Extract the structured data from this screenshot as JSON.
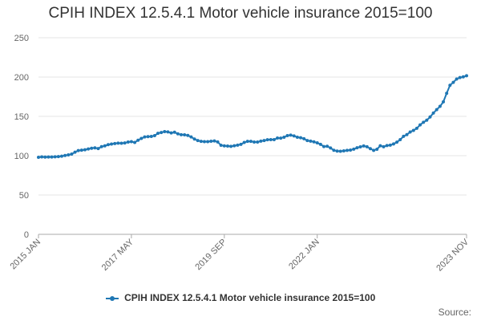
{
  "chart_data": {
    "type": "line",
    "title": "CPIH INDEX 12.5.4.1 Motor vehicle insurance 2015=100",
    "xlabel": "",
    "ylabel": "",
    "ylim": [
      0,
      250
    ],
    "yticks": [
      0,
      50,
      100,
      150,
      200,
      250
    ],
    "xtick_labels": [
      "2015 JAN",
      "2017 MAY",
      "2019 SEP",
      "2022 JAN",
      "2023 NOV"
    ],
    "x_start": "2015 JAN",
    "x_end": "2023 NOV",
    "grid": true,
    "legend": "bottom",
    "series": [
      {
        "name": "CPIH INDEX 12.5.4.1 Motor vehicle insurance 2015=100",
        "color": "#1f77b4",
        "values": [
          98,
          98.5,
          98.2,
          98.4,
          98.3,
          98.6,
          98.9,
          99.4,
          100.2,
          101,
          102,
          104.5,
          106.5,
          107,
          107.5,
          108.5,
          109.5,
          110,
          109,
          111.5,
          112.5,
          114,
          114.8,
          115.4,
          116,
          115.8,
          116.2,
          117.4,
          117.8,
          116.9,
          119.6,
          122,
          123.8,
          124.2,
          124.5,
          125.5,
          128.5,
          129.5,
          130.6,
          130.2,
          128.9,
          129.8,
          127.8,
          126.6,
          126.5,
          125.8,
          123.9,
          121.2,
          119.2,
          118.2,
          117.8,
          117.9,
          118.4,
          118.8,
          117.5,
          113.2,
          112.5,
          112.2,
          111.9,
          112.6,
          113.4,
          114.4,
          116.8,
          118.3,
          118.3,
          117.4,
          117.3,
          118.5,
          119.2,
          120.3,
          120.4,
          120.4,
          122.4,
          122.3,
          123.5,
          125.5,
          126.2,
          125.1,
          123.5,
          122.8,
          121.6,
          119.2,
          118.5,
          117.6,
          116.3,
          114.4,
          111.6,
          112,
          109.8,
          106.9,
          105.9,
          105.6,
          106.1,
          106.7,
          107.1,
          108.3,
          110.1,
          111.2,
          112.4,
          111.3,
          108.9,
          106.8,
          108.2,
          112.6,
          111.4,
          112.9,
          113.4,
          114.9,
          117.2,
          120.4,
          124.6,
          126.8,
          130.1,
          132.2,
          134.8,
          139.2,
          142.5,
          145.1,
          149.2,
          154.2,
          158.6,
          162.7,
          168.5,
          179.3,
          189.5,
          193.3,
          197.5,
          199.4,
          200.2,
          201.6
        ]
      }
    ]
  },
  "legend_label": "CPIH INDEX 12.5.4.1 Motor vehicle insurance 2015=100",
  "source_label": "Source:"
}
